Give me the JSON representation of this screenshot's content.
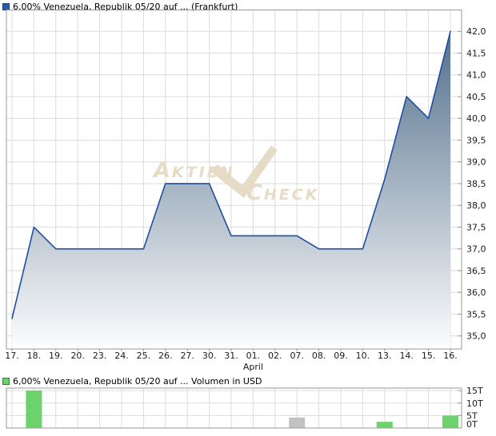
{
  "colors": {
    "grid": "#dcdcdc",
    "frame": "#999999",
    "tick_text": "#1a1a1a",
    "line_blue": "#1e4f9e",
    "fill_top": "#54708c",
    "fill_bottom": "#fdfdfd",
    "bar_green": "#6cd26c",
    "bar_gray": "#c2c2c2",
    "watermark": "#e6dcc6",
    "legend_blue": "#2a5cae",
    "legend_green": "#6cd26c"
  },
  "watermark": {
    "part1_initial": "A",
    "part1_rest": "KTIEN",
    "part2_initial": "C",
    "part2_rest": "HECK"
  },
  "chart_data": [
    {
      "type": "area",
      "title": "6,00% Venezuela, Republik 05/20 auf ... (Frankfurt)",
      "x_tick_labels": [
        "17.",
        "18.",
        "19.",
        "20.",
        "23.",
        "24.",
        "25.",
        "26.",
        "27.",
        "30.",
        "31.",
        "01.",
        "02.",
        "07.",
        "08.",
        "09.",
        "10.",
        "13.",
        "14.",
        "15.",
        "16."
      ],
      "month_label": {
        "text": "April",
        "at_index": 11
      },
      "values": [
        35.4,
        37.5,
        37.0,
        37.0,
        37.0,
        37.0,
        37.0,
        38.5,
        38.5,
        38.5,
        37.3,
        37.3,
        37.3,
        37.3,
        37.0,
        37.0,
        37.0,
        38.6,
        40.5,
        40.0,
        42.0
      ],
      "y_tick_values": [
        35.0,
        35.5,
        36.0,
        36.5,
        37.0,
        37.5,
        38.0,
        38.5,
        39.0,
        39.5,
        40.0,
        40.5,
        41.0,
        41.5,
        42.0
      ],
      "y_tick_labels": [
        "35,0",
        "35,5",
        "36,0",
        "36,5",
        "37,0",
        "37,5",
        "38,0",
        "38,5",
        "39,0",
        "39,5",
        "40,0",
        "40,5",
        "41,0",
        "41,5",
        "42,0"
      ],
      "ylim": [
        34.7,
        42.5
      ],
      "grid": true,
      "legend_position": "top-left"
    },
    {
      "type": "bar",
      "title": "6,00% Venezuela, Republik 05/20 auf ... Volumen in USD",
      "shares_x_axis_with": 0,
      "bars": [
        {
          "index": 1,
          "x_label": "18.",
          "value": 15000,
          "color": "green"
        },
        {
          "index": 13,
          "x_label": "07.",
          "value": 4200,
          "color": "gray"
        },
        {
          "index": 17,
          "x_label": "13.",
          "value": 2500,
          "color": "green"
        },
        {
          "index": 20,
          "x_label": "16.",
          "value": 5000,
          "color": "green"
        }
      ],
      "y_tick_values": [
        0,
        5000,
        10000,
        15000
      ],
      "y_tick_labels": [
        "0T",
        "5T",
        "10T",
        "15T"
      ],
      "ylim": [
        0,
        16000
      ],
      "grid": true,
      "legend_position": "top-left"
    }
  ]
}
